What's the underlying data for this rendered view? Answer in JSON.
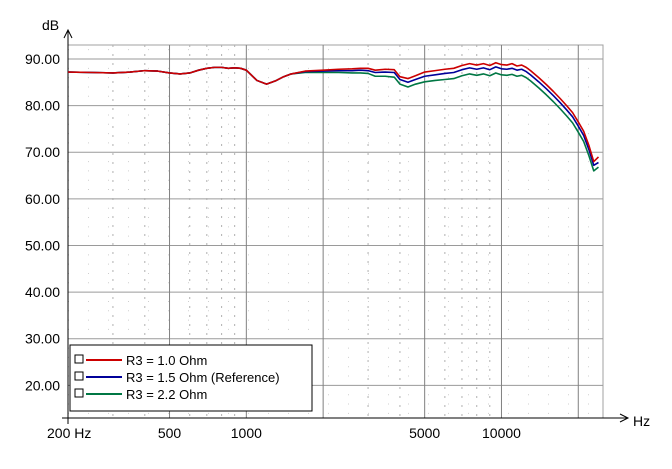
{
  "chart_data": {
    "type": "line",
    "title": "",
    "ylabel": "dB",
    "xlabel": "Hz",
    "x_scale": "log",
    "xlim": [
      200,
      25000
    ],
    "ylim": [
      13,
      93
    ],
    "grid": true,
    "y_ticks": [
      20,
      30,
      40,
      50,
      60,
      70,
      80,
      90
    ],
    "y_tick_labels": [
      "20.00",
      "30.00",
      "40.00",
      "50.00",
      "60.00",
      "70.00",
      "80.00",
      "90.00"
    ],
    "x_ticks": [
      200,
      500,
      1000,
      5000,
      10000
    ],
    "x_tick_labels": [
      "200 Hz",
      "500",
      "1000",
      "5000",
      "10000"
    ],
    "legend_position": "bottom-left",
    "series": [
      {
        "name": "R3 = 1.0 Ohm",
        "color": "#cc0000",
        "x": [
          200,
          250,
          300,
          350,
          400,
          450,
          500,
          550,
          600,
          650,
          700,
          750,
          800,
          850,
          900,
          950,
          1000,
          1100,
          1200,
          1300,
          1400,
          1500,
          1700,
          2000,
          2300,
          2600,
          2800,
          3000,
          3200,
          3500,
          3800,
          4000,
          4300,
          4600,
          5000,
          5500,
          6000,
          6500,
          7000,
          7500,
          8000,
          8500,
          9000,
          9500,
          10000,
          10500,
          11000,
          11500,
          12000,
          12500,
          13000,
          14000,
          15000,
          16000,
          17000,
          18000,
          19000,
          20000,
          21000,
          22000,
          23000,
          24000
        ],
        "y": [
          87.2,
          87.1,
          87.0,
          87.2,
          87.5,
          87.4,
          87.0,
          86.8,
          87.0,
          87.6,
          88.0,
          88.2,
          88.2,
          88.0,
          88.1,
          88.0,
          87.6,
          85.4,
          84.6,
          85.3,
          86.2,
          86.8,
          87.4,
          87.6,
          87.8,
          87.9,
          88.0,
          88.0,
          87.6,
          87.8,
          87.7,
          86.2,
          85.8,
          86.4,
          87.2,
          87.5,
          87.8,
          88.0,
          88.6,
          89.0,
          88.7,
          89.0,
          88.6,
          89.2,
          88.8,
          88.7,
          89.0,
          88.5,
          88.7,
          88.2,
          87.5,
          86.0,
          84.5,
          83.0,
          81.5,
          80.0,
          78.5,
          76.5,
          74.5,
          71.5,
          68.0,
          69.0
        ]
      },
      {
        "name": "R3 = 1.5 Ohm (Reference)",
        "color": "#000099",
        "x": [
          200,
          250,
          300,
          350,
          400,
          450,
          500,
          550,
          600,
          650,
          700,
          750,
          800,
          850,
          900,
          950,
          1000,
          1100,
          1200,
          1300,
          1400,
          1500,
          1700,
          2000,
          2300,
          2600,
          2800,
          3000,
          3200,
          3500,
          3800,
          4000,
          4300,
          4600,
          5000,
          5500,
          6000,
          6500,
          7000,
          7500,
          8000,
          8500,
          9000,
          9500,
          10000,
          10500,
          11000,
          11500,
          12000,
          12500,
          13000,
          14000,
          15000,
          16000,
          17000,
          18000,
          19000,
          20000,
          21000,
          22000,
          23000,
          24000
        ],
        "y": [
          87.2,
          87.1,
          87.0,
          87.2,
          87.5,
          87.4,
          87.0,
          86.8,
          87.0,
          87.6,
          88.0,
          88.2,
          88.2,
          88.0,
          88.1,
          88.0,
          87.6,
          85.4,
          84.6,
          85.3,
          86.2,
          86.8,
          87.3,
          87.4,
          87.5,
          87.5,
          87.6,
          87.5,
          87.1,
          87.2,
          87.1,
          85.6,
          85.0,
          85.6,
          86.3,
          86.6,
          86.9,
          87.1,
          87.7,
          88.1,
          87.8,
          88.1,
          87.7,
          88.3,
          87.9,
          87.8,
          88.0,
          87.6,
          87.8,
          87.3,
          86.6,
          85.1,
          83.6,
          82.1,
          80.6,
          79.1,
          77.6,
          75.6,
          73.6,
          70.6,
          67.2,
          67.8
        ]
      },
      {
        "name": "R3 = 2.2 Ohm",
        "color": "#007744",
        "x": [
          200,
          250,
          300,
          350,
          400,
          450,
          500,
          550,
          600,
          650,
          700,
          750,
          800,
          850,
          900,
          950,
          1000,
          1100,
          1200,
          1300,
          1400,
          1500,
          1700,
          2000,
          2300,
          2600,
          2800,
          3000,
          3200,
          3500,
          3800,
          4000,
          4300,
          4600,
          5000,
          5500,
          6000,
          6500,
          7000,
          7500,
          8000,
          8500,
          9000,
          9500,
          10000,
          10500,
          11000,
          11500,
          12000,
          12500,
          13000,
          14000,
          15000,
          16000,
          17000,
          18000,
          19000,
          20000,
          21000,
          22000,
          23000,
          24000
        ],
        "y": [
          87.2,
          87.1,
          87.0,
          87.2,
          87.5,
          87.4,
          87.0,
          86.8,
          87.0,
          87.6,
          88.0,
          88.2,
          88.2,
          88.0,
          88.1,
          88.0,
          87.6,
          85.4,
          84.6,
          85.3,
          86.2,
          86.8,
          87.1,
          87.1,
          87.1,
          87.0,
          87.0,
          86.9,
          86.3,
          86.3,
          86.1,
          84.6,
          84.0,
          84.6,
          85.1,
          85.4,
          85.6,
          85.8,
          86.4,
          86.8,
          86.5,
          86.8,
          86.4,
          87.0,
          86.6,
          86.5,
          86.7,
          86.3,
          86.5,
          86.0,
          85.3,
          83.8,
          82.3,
          80.8,
          79.3,
          77.8,
          76.3,
          74.3,
          72.3,
          69.3,
          66.0,
          66.8
        ]
      }
    ]
  }
}
